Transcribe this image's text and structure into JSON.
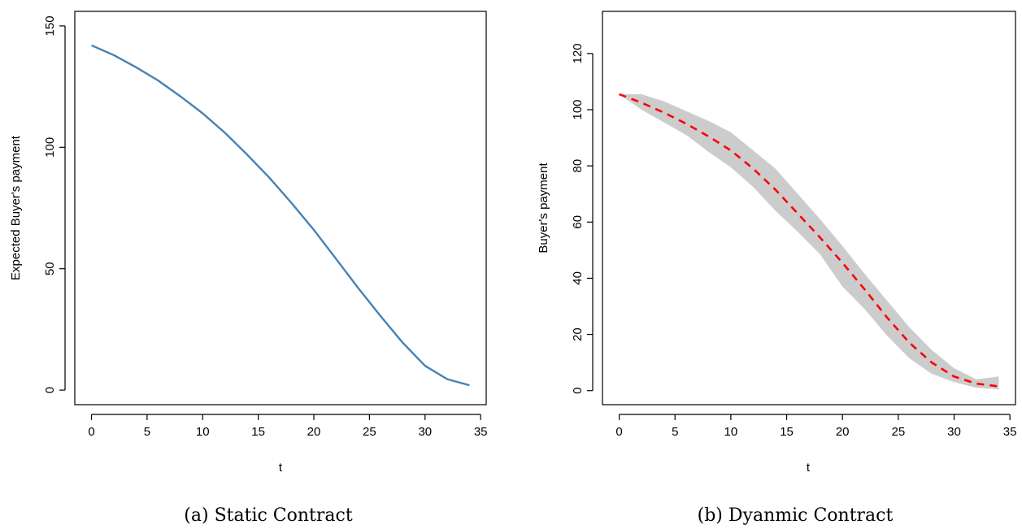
{
  "chart_data": [
    {
      "type": "line",
      "caption": "(a) Static Contract",
      "xlabel": "t",
      "ylabel": "Expected Buyer's payment",
      "xlim": [
        -1.5,
        35.5
      ],
      "ylim": [
        -6,
        156
      ],
      "x_ticks": [
        0,
        5,
        10,
        15,
        20,
        25,
        30,
        35
      ],
      "y_ticks": [
        0,
        50,
        100,
        150
      ],
      "colors": {
        "line": "#4682b4"
      },
      "series": [
        {
          "style": "solid",
          "x": [
            0,
            2,
            4,
            6,
            8,
            10,
            12,
            14,
            16,
            18,
            20,
            22,
            24,
            26,
            28,
            30,
            32,
            34
          ],
          "y": [
            142,
            138,
            133,
            127.5,
            121,
            114,
            106,
            97,
            87.5,
            77,
            66,
            54,
            42,
            30.5,
            19.5,
            10,
            4.5,
            2
          ]
        }
      ]
    },
    {
      "type": "line",
      "caption": "(b) Dyanmic Contract",
      "xlabel": "t",
      "ylabel": "Buyer's payment",
      "xlim": [
        -1.5,
        35.5
      ],
      "ylim": [
        -5,
        135
      ],
      "x_ticks": [
        0,
        5,
        10,
        15,
        20,
        25,
        30,
        35
      ],
      "y_ticks": [
        0,
        20,
        40,
        60,
        80,
        100,
        120
      ],
      "colors": {
        "line": "#ff0000",
        "band": "#cccccc"
      },
      "series": [
        {
          "style": "dashed",
          "x": [
            0,
            2,
            4,
            6,
            8,
            10,
            12,
            14,
            16,
            18,
            20,
            22,
            24,
            26,
            28,
            30,
            32,
            34
          ],
          "y": [
            105.5,
            102.5,
            99,
            95,
            90.5,
            85.5,
            79,
            71.5,
            63,
            54.5,
            45.5,
            36,
            26,
            17,
            10,
            5,
            2.5,
            1.5
          ],
          "lower": [
            105.5,
            100,
            95.5,
            91,
            85,
            79.5,
            72.5,
            64,
            56.5,
            48.5,
            37,
            29,
            19.5,
            11.5,
            6,
            3,
            1,
            0.5
          ],
          "upper": [
            105.5,
            105.5,
            103,
            99.5,
            96,
            92,
            85.5,
            79,
            70,
            61,
            51.5,
            41.5,
            32,
            22.5,
            14.5,
            8,
            4,
            5
          ]
        }
      ]
    }
  ]
}
